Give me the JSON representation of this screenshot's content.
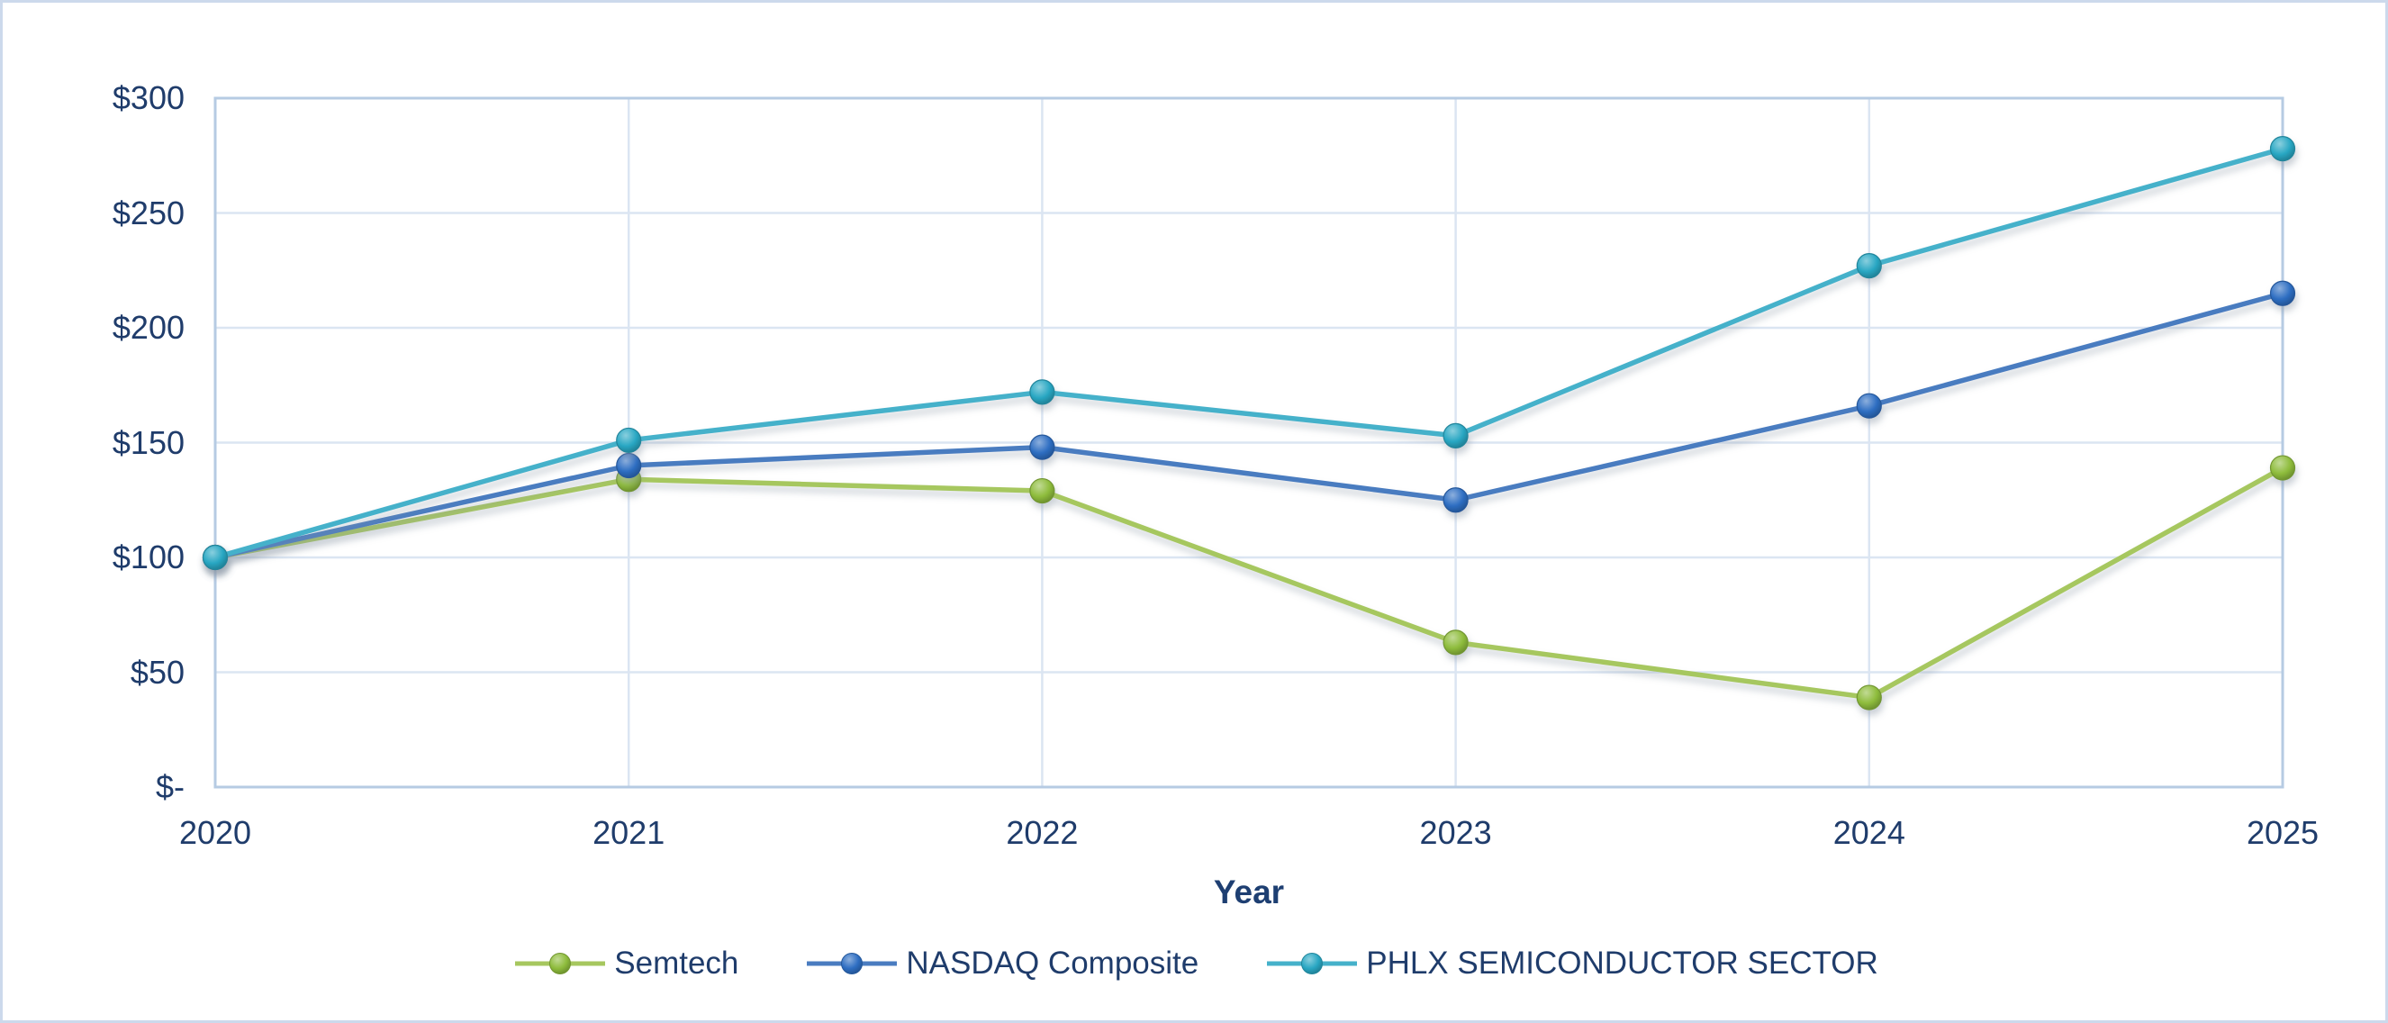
{
  "colors": {
    "frame_border": "#ccd9ec",
    "plot_border": "#b6cbe3",
    "gridline": "#dbe5f2",
    "text": "#1f3c6b",
    "axis_title_text": "#1e3f72"
  },
  "chart_data": {
    "type": "line",
    "xlabel": "Year",
    "ylabel": "",
    "categories": [
      "2020",
      "2021",
      "2022",
      "2023",
      "2024",
      "2025"
    ],
    "series": [
      {
        "name": "Semtech",
        "values": [
          100,
          134,
          129,
          63,
          39,
          139
        ],
        "marker_color": "#8ebc3c",
        "line_color": "#a6c75e"
      },
      {
        "name": "NASDAQ Composite",
        "values": [
          100,
          140,
          148,
          125,
          166,
          215
        ],
        "marker_color": "#2e6ec2",
        "line_color": "#4a7cc0"
      },
      {
        "name": "PHLX SEMICONDUCTOR SECTOR",
        "values": [
          100,
          151,
          172,
          153,
          227,
          278
        ],
        "marker_color": "#29a7c3",
        "line_color": "#45b1ca"
      }
    ],
    "y_ticks": [
      {
        "value": 0,
        "label": "$-"
      },
      {
        "value": 50,
        "label": "$50"
      },
      {
        "value": 100,
        "label": "$100"
      },
      {
        "value": 150,
        "label": "$150"
      },
      {
        "value": 200,
        "label": "$200"
      },
      {
        "value": 250,
        "label": "$250"
      },
      {
        "value": 300,
        "label": "$300"
      }
    ],
    "ylim": [
      0,
      300
    ],
    "grid": true,
    "legend_position": "bottom"
  }
}
